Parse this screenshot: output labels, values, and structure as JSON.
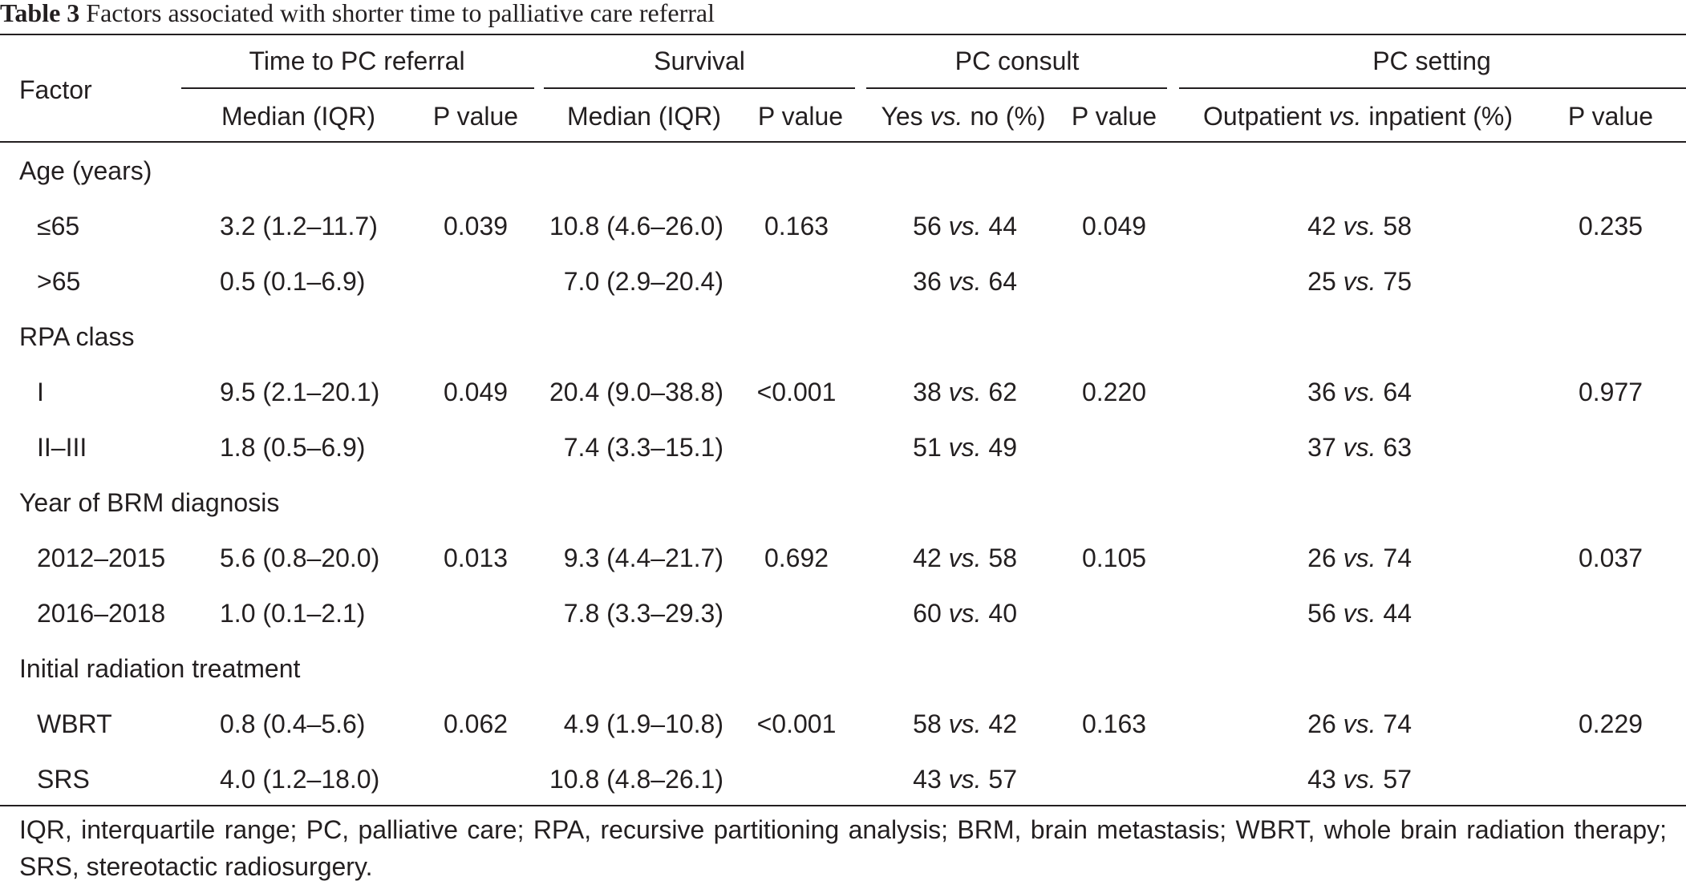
{
  "caption": {
    "label": "Table 3",
    "title": "Factors associated with shorter time to palliative care referral"
  },
  "header": {
    "factor": "Factor",
    "groups": [
      "Time to PC referral",
      "Survival",
      "PC consult",
      "PC setting"
    ],
    "subheads": {
      "median_iqr_1": "Median (IQR)",
      "p_value_1": "P value",
      "median_iqr_2": "Median (IQR)",
      "p_value_2": "P value",
      "consult_pre": "Yes ",
      "consult_vs": "vs.",
      "consult_post": " no (%)",
      "p_value_3": "P value",
      "setting_pre": "Outpatient ",
      "setting_vs": "vs.",
      "setting_post": " inpatient (%)",
      "p_value_4": "P value"
    }
  },
  "vs": "vs.",
  "groups": [
    {
      "label": "Age (years)",
      "rows": [
        {
          "factor": "≤65",
          "pc_time": "3.2 (1.2–11.7)",
          "pc_time_p": "0.039",
          "survival": "10.8 (4.6–26.0)",
          "survival_p": "0.163",
          "consult_yes": "56",
          "consult_no": "44",
          "consult_p": "0.049",
          "setting_out": "42",
          "setting_in": "58",
          "setting_p": "0.235"
        },
        {
          "factor": ">65",
          "pc_time": "0.5 (0.1–6.9)",
          "pc_time_p": "",
          "survival": "7.0 (2.9–20.4)",
          "survival_p": "",
          "consult_yes": "36",
          "consult_no": "64",
          "consult_p": "",
          "setting_out": "25",
          "setting_in": "75",
          "setting_p": ""
        }
      ]
    },
    {
      "label": "RPA class",
      "rows": [
        {
          "factor": "I",
          "pc_time": "9.5 (2.1–20.1)",
          "pc_time_p": "0.049",
          "survival": "20.4 (9.0–38.8)",
          "survival_p": "<0.001",
          "consult_yes": "38",
          "consult_no": "62",
          "consult_p": "0.220",
          "setting_out": "36",
          "setting_in": "64",
          "setting_p": "0.977"
        },
        {
          "factor": "II–III",
          "pc_time": "1.8 (0.5–6.9)",
          "pc_time_p": "",
          "survival": "7.4 (3.3–15.1)",
          "survival_p": "",
          "consult_yes": "51",
          "consult_no": "49",
          "consult_p": "",
          "setting_out": "37",
          "setting_in": "63",
          "setting_p": ""
        }
      ]
    },
    {
      "label": "Year of BRM diagnosis",
      "rows": [
        {
          "factor": "2012–2015",
          "pc_time": "5.6 (0.8–20.0)",
          "pc_time_p": "0.013",
          "survival": "9.3 (4.4–21.7)",
          "survival_p": "0.692",
          "consult_yes": "42",
          "consult_no": "58",
          "consult_p": "0.105",
          "setting_out": "26",
          "setting_in": "74",
          "setting_p": "0.037"
        },
        {
          "factor": "2016–2018",
          "pc_time": "1.0 (0.1–2.1)",
          "pc_time_p": "",
          "survival": "7.8 (3.3–29.3)",
          "survival_p": "",
          "consult_yes": "60",
          "consult_no": "40",
          "consult_p": "",
          "setting_out": "56",
          "setting_in": "44",
          "setting_p": ""
        }
      ]
    },
    {
      "label": "Initial radiation treatment",
      "rows": [
        {
          "factor": "WBRT",
          "pc_time": "0.8 (0.4–5.6)",
          "pc_time_p": "0.062",
          "survival": "4.9 (1.9–10.8)",
          "survival_p": "<0.001",
          "consult_yes": "58",
          "consult_no": "42",
          "consult_p": "0.163",
          "setting_out": "26",
          "setting_in": "74",
          "setting_p": "0.229"
        },
        {
          "factor": "SRS",
          "pc_time": "4.0 (1.2–18.0)",
          "pc_time_p": "",
          "survival": "10.8 (4.8–26.1)",
          "survival_p": "",
          "consult_yes": "43",
          "consult_no": "57",
          "consult_p": "",
          "setting_out": "43",
          "setting_in": "57",
          "setting_p": ""
        }
      ]
    }
  ],
  "footnote": "IQR, interquartile range; PC, palliative care; RPA, recursive partitioning analysis; BRM, brain metastasis; WBRT, whole brain radiation therapy; SRS, stereotactic radiosurgery."
}
